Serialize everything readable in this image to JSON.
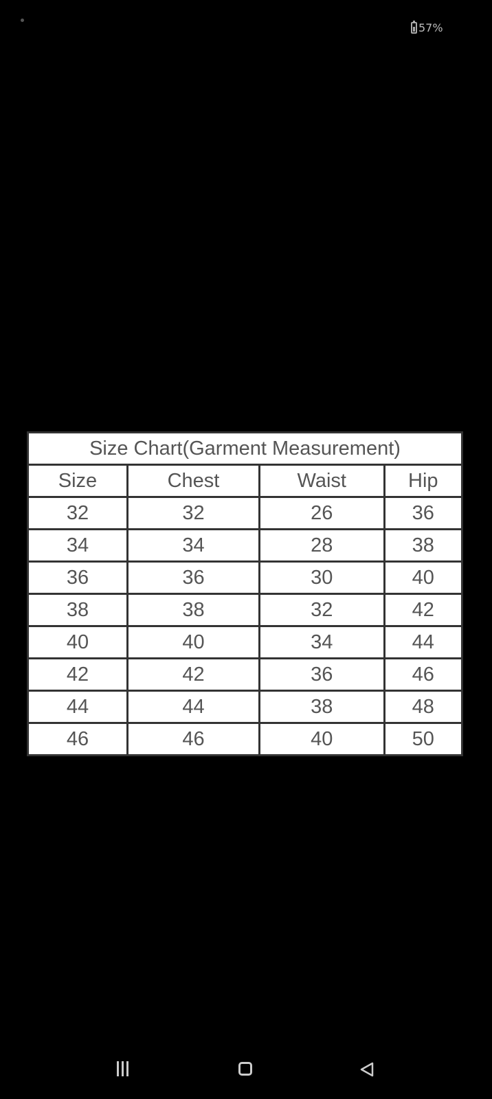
{
  "status_bar": {
    "battery_percent": "57%",
    "battery_level": 0.57
  },
  "size_chart": {
    "title": "Size Chart(Garment Measurement)",
    "headers": [
      "Size",
      "Chest",
      "Waist",
      "Hip"
    ],
    "rows": [
      [
        "32",
        "32",
        "26",
        "36"
      ],
      [
        "34",
        "34",
        "28",
        "38"
      ],
      [
        "36",
        "36",
        "30",
        "40"
      ],
      [
        "38",
        "38",
        "32",
        "42"
      ],
      [
        "40",
        "40",
        "34",
        "44"
      ],
      [
        "42",
        "42",
        "36",
        "46"
      ],
      [
        "44",
        "44",
        "38",
        "48"
      ],
      [
        "46",
        "46",
        "40",
        "50"
      ]
    ]
  },
  "nav_bar": {
    "icons": [
      "recent-apps-icon",
      "home-icon",
      "back-icon"
    ]
  }
}
